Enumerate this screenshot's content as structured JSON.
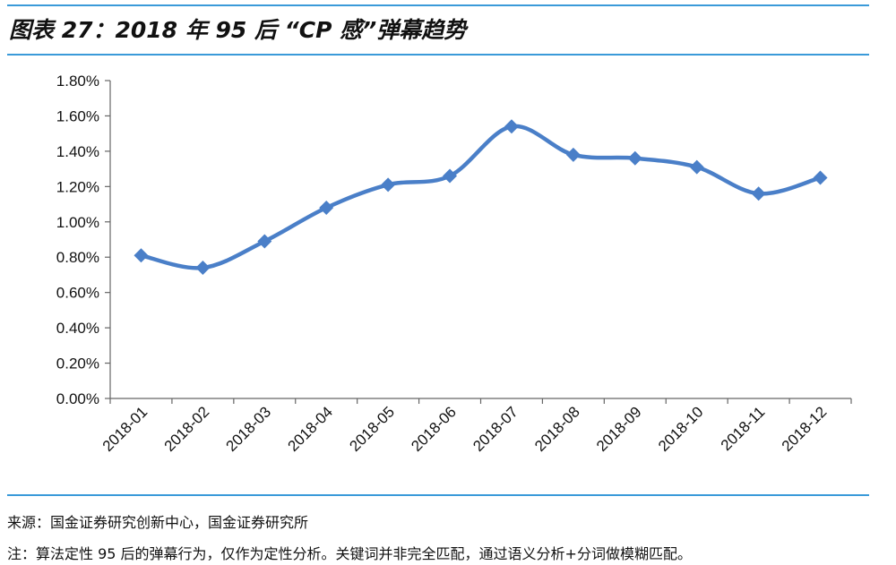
{
  "title": "图表 27：2018 年 95 后 “CP 感”弹幕趋势",
  "chart_data": {
    "type": "line",
    "categories": [
      "2018-01",
      "2018-02",
      "2018-03",
      "2018-04",
      "2018-05",
      "2018-06",
      "2018-07",
      "2018-08",
      "2018-09",
      "2018-10",
      "2018-11",
      "2018-12"
    ],
    "series": [
      {
        "values": [
          0.81,
          0.74,
          0.89,
          1.08,
          1.21,
          1.26,
          1.54,
          1.38,
          1.36,
          1.31,
          1.16,
          1.25
        ]
      }
    ],
    "ylim": [
      0,
      1.8
    ],
    "yticks": [
      "0.00%",
      "0.20%",
      "0.40%",
      "0.60%",
      "0.80%",
      "1.00%",
      "1.20%",
      "1.40%",
      "1.60%",
      "1.80%"
    ],
    "grid": false,
    "smooth": true,
    "marker": "diamond",
    "color": "#4a7fc8"
  },
  "footer": {
    "source": "来源：国金证券研究创新中心，国金证券研究所",
    "note": "注：算法定性 95 后的弹幕行为，仅作为定性分析。关键词并非完全匹配，通过语义分析+分词做模糊匹配。"
  }
}
